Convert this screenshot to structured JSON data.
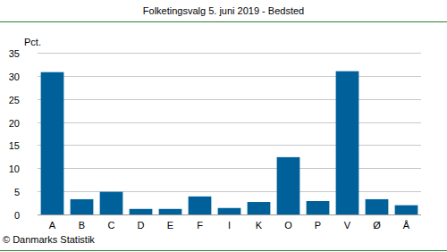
{
  "chart_data": {
    "type": "bar",
    "title": "Folketingsvalg 5. juni 2019 - Bedsted",
    "y_label": "Pct.",
    "source": "© Danmarks Statistik",
    "categories": [
      "A",
      "B",
      "C",
      "D",
      "E",
      "F",
      "I",
      "K",
      "O",
      "P",
      "V",
      "Ø",
      "Å"
    ],
    "values": [
      30.8,
      3.3,
      4.9,
      1.2,
      1.2,
      3.9,
      1.4,
      2.7,
      12.4,
      2.9,
      31.0,
      3.3,
      2.0
    ],
    "color": "#00619a",
    "ylim": [
      0,
      35
    ],
    "yticks": [
      0,
      5,
      10,
      15,
      20,
      25,
      30,
      35
    ],
    "grid": true
  }
}
